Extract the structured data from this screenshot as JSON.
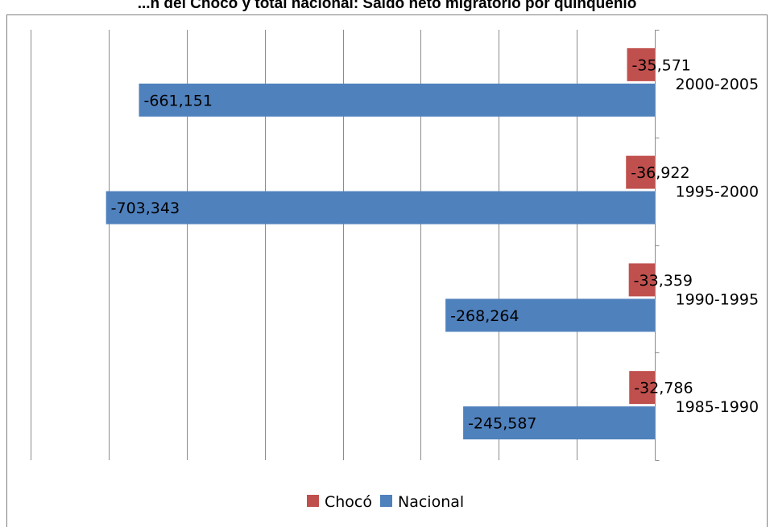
{
  "chart_data": {
    "type": "bar",
    "orientation": "horizontal",
    "title": "...n del Chocó y total nacional: Saldo neto migratorio por quinquenio",
    "categories": [
      "1985-1990",
      "1990-1995",
      "1995-2000",
      "2000-2005"
    ],
    "series": [
      {
        "name": "Chocó",
        "color": "#c0504d",
        "values": [
          -32786,
          -33359,
          -36922,
          -35571
        ],
        "labels": [
          "-32,786",
          "-33,359",
          "-36,922",
          "-35,571"
        ]
      },
      {
        "name": "Nacional",
        "color": "#4f81bd",
        "values": [
          -245587,
          -268264,
          -703343,
          -661151
        ],
        "labels": [
          "-245,587",
          "-268,264",
          "-703,343",
          "-661,151"
        ]
      }
    ],
    "xlim": [
      -800000,
      0
    ],
    "grid": true,
    "legend": "bottom"
  }
}
